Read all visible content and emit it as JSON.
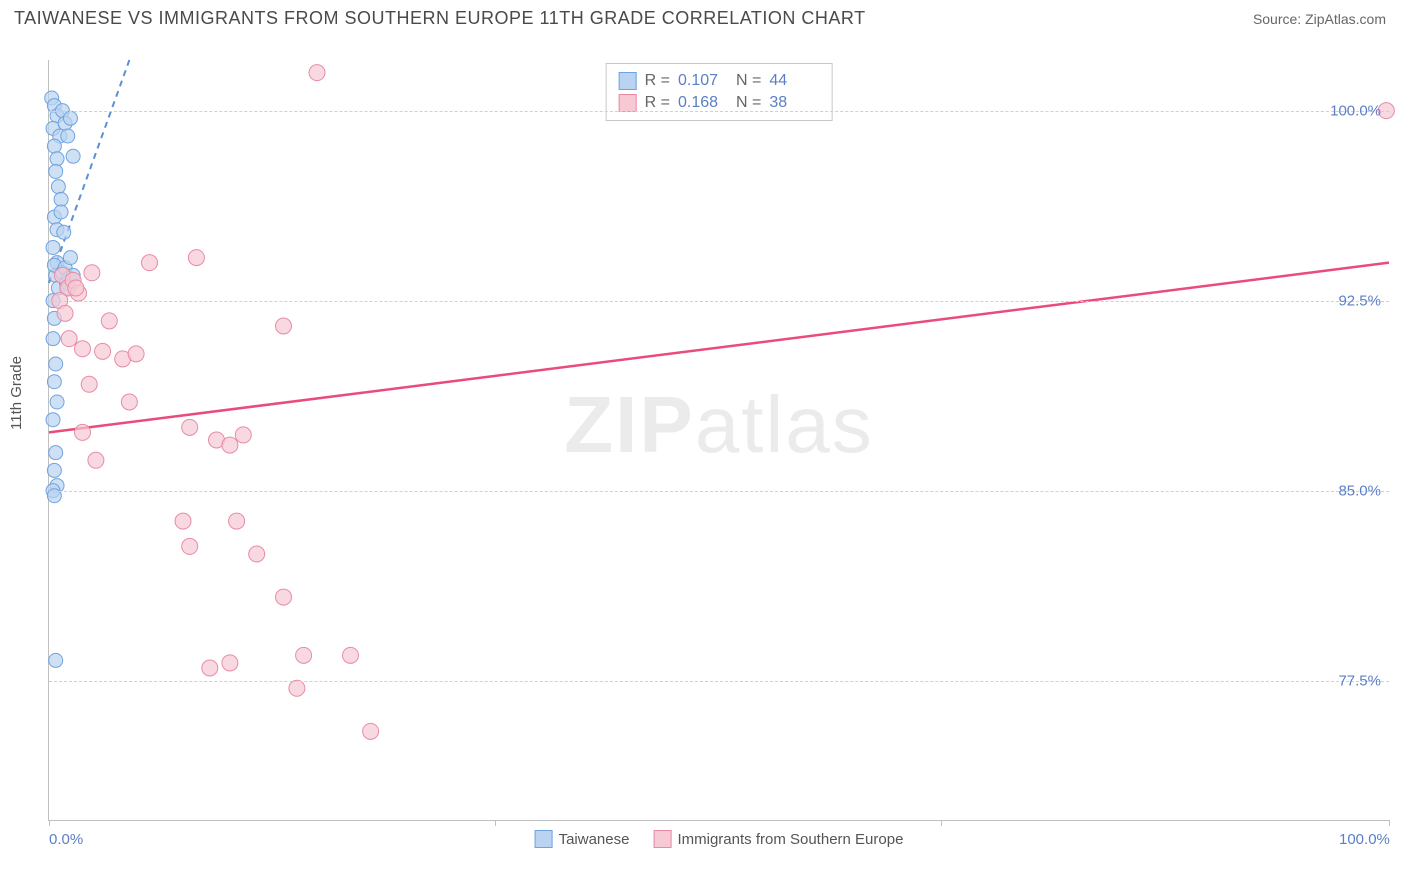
{
  "header": {
    "title": "TAIWANESE VS IMMIGRANTS FROM SOUTHERN EUROPE 11TH GRADE CORRELATION CHART",
    "source": "Source: ZipAtlas.com"
  },
  "chart": {
    "type": "scatter",
    "ylabel": "11th Grade",
    "watermark": "ZIPatlas",
    "background_color": "#ffffff",
    "grid_color": "#d0d0d0",
    "axis_color": "#c0c0c0",
    "tick_color": "#5b7fc7",
    "xlim": [
      0,
      100
    ],
    "ylim": [
      72,
      102
    ],
    "yticks": [
      {
        "value": 100.0,
        "label": "100.0%"
      },
      {
        "value": 92.5,
        "label": "92.5%"
      },
      {
        "value": 85.0,
        "label": "85.0%"
      },
      {
        "value": 77.5,
        "label": "77.5%"
      }
    ],
    "xticks": [
      {
        "value": 0,
        "label": "0.0%"
      },
      {
        "value": 100,
        "label": "100.0%"
      }
    ],
    "xtick_marks": [
      0,
      33.3,
      66.6,
      100
    ],
    "series": [
      {
        "name": "Taiwanese",
        "marker_fill": "#b9d3f0",
        "marker_stroke": "#6fa3e0",
        "marker_opacity": 0.7,
        "marker_radius": 7,
        "line_color": "#5b8fd6",
        "line_dash": "6,5",
        "line_width": 2,
        "r": "0.107",
        "n": "44",
        "trend": {
          "x1": 0,
          "y1": 93.2,
          "x2": 6,
          "y2": 102
        },
        "points": [
          [
            0.2,
            100.5
          ],
          [
            0.4,
            100.2
          ],
          [
            0.6,
            99.8
          ],
          [
            0.3,
            99.3
          ],
          [
            0.8,
            99.0
          ],
          [
            0.4,
            98.6
          ],
          [
            0.6,
            98.1
          ],
          [
            1.0,
            100.0
          ],
          [
            1.2,
            99.5
          ],
          [
            1.4,
            99.0
          ],
          [
            1.6,
            99.7
          ],
          [
            1.8,
            98.2
          ],
          [
            0.5,
            97.6
          ],
          [
            0.7,
            97.0
          ],
          [
            0.9,
            96.5
          ],
          [
            0.4,
            95.8
          ],
          [
            0.6,
            95.3
          ],
          [
            0.9,
            96.0
          ],
          [
            1.1,
            95.2
          ],
          [
            0.3,
            94.6
          ],
          [
            0.6,
            94.0
          ],
          [
            0.5,
            93.5
          ],
          [
            0.4,
            93.9
          ],
          [
            0.7,
            93.0
          ],
          [
            0.3,
            92.5
          ],
          [
            1.0,
            93.6
          ],
          [
            1.3,
            93.2
          ],
          [
            1.2,
            93.8
          ],
          [
            1.5,
            93.4
          ],
          [
            1.6,
            94.2
          ],
          [
            1.8,
            93.5
          ],
          [
            0.4,
            91.8
          ],
          [
            0.3,
            91.0
          ],
          [
            0.5,
            90.0
          ],
          [
            0.4,
            89.3
          ],
          [
            0.6,
            88.5
          ],
          [
            0.3,
            87.8
          ],
          [
            0.5,
            86.5
          ],
          [
            0.4,
            85.8
          ],
          [
            0.6,
            85.2
          ],
          [
            0.3,
            85.0
          ],
          [
            0.4,
            84.8
          ],
          [
            0.5,
            78.3
          ],
          [
            1.4,
            93.0
          ]
        ]
      },
      {
        "name": "Immigrants from Southern Europe",
        "marker_fill": "#f7c9d4",
        "marker_stroke": "#e88ba5",
        "marker_opacity": 0.7,
        "marker_radius": 8,
        "line_color": "#e94b7b",
        "line_dash": "",
        "line_width": 2.5,
        "r": "0.168",
        "n": "38",
        "trend": {
          "x1": 0,
          "y1": 87.3,
          "x2": 100,
          "y2": 94.0
        },
        "points": [
          [
            99.8,
            100.0
          ],
          [
            20.0,
            101.5
          ],
          [
            7.5,
            94.0
          ],
          [
            11.0,
            94.2
          ],
          [
            1.0,
            93.5
          ],
          [
            1.4,
            93.0
          ],
          [
            1.8,
            93.3
          ],
          [
            2.2,
            92.8
          ],
          [
            4.5,
            91.7
          ],
          [
            17.5,
            91.5
          ],
          [
            1.5,
            91.0
          ],
          [
            2.5,
            90.6
          ],
          [
            4.0,
            90.5
          ],
          [
            5.5,
            90.2
          ],
          [
            6.5,
            90.4
          ],
          [
            3.0,
            89.2
          ],
          [
            6.0,
            88.5
          ],
          [
            2.5,
            87.3
          ],
          [
            10.5,
            87.5
          ],
          [
            12.5,
            87.0
          ],
          [
            13.5,
            86.8
          ],
          [
            14.5,
            87.2
          ],
          [
            3.5,
            86.2
          ],
          [
            10.0,
            83.8
          ],
          [
            14.0,
            83.8
          ],
          [
            10.5,
            82.8
          ],
          [
            15.5,
            82.5
          ],
          [
            17.5,
            80.8
          ],
          [
            13.5,
            78.2
          ],
          [
            19.0,
            78.5
          ],
          [
            22.5,
            78.5
          ],
          [
            12.0,
            78.0
          ],
          [
            18.5,
            77.2
          ],
          [
            24.0,
            75.5
          ],
          [
            0.8,
            92.5
          ],
          [
            1.2,
            92.0
          ],
          [
            2.0,
            93.0
          ],
          [
            3.2,
            93.6
          ]
        ]
      }
    ],
    "legend_top": {
      "r_label": "R =",
      "n_label": "N ="
    },
    "legend_bottom": [
      {
        "label": "Taiwanese",
        "fill": "#b9d3f0",
        "stroke": "#6fa3e0"
      },
      {
        "label": "Immigrants from Southern Europe",
        "fill": "#f7c9d4",
        "stroke": "#e88ba5"
      }
    ]
  }
}
